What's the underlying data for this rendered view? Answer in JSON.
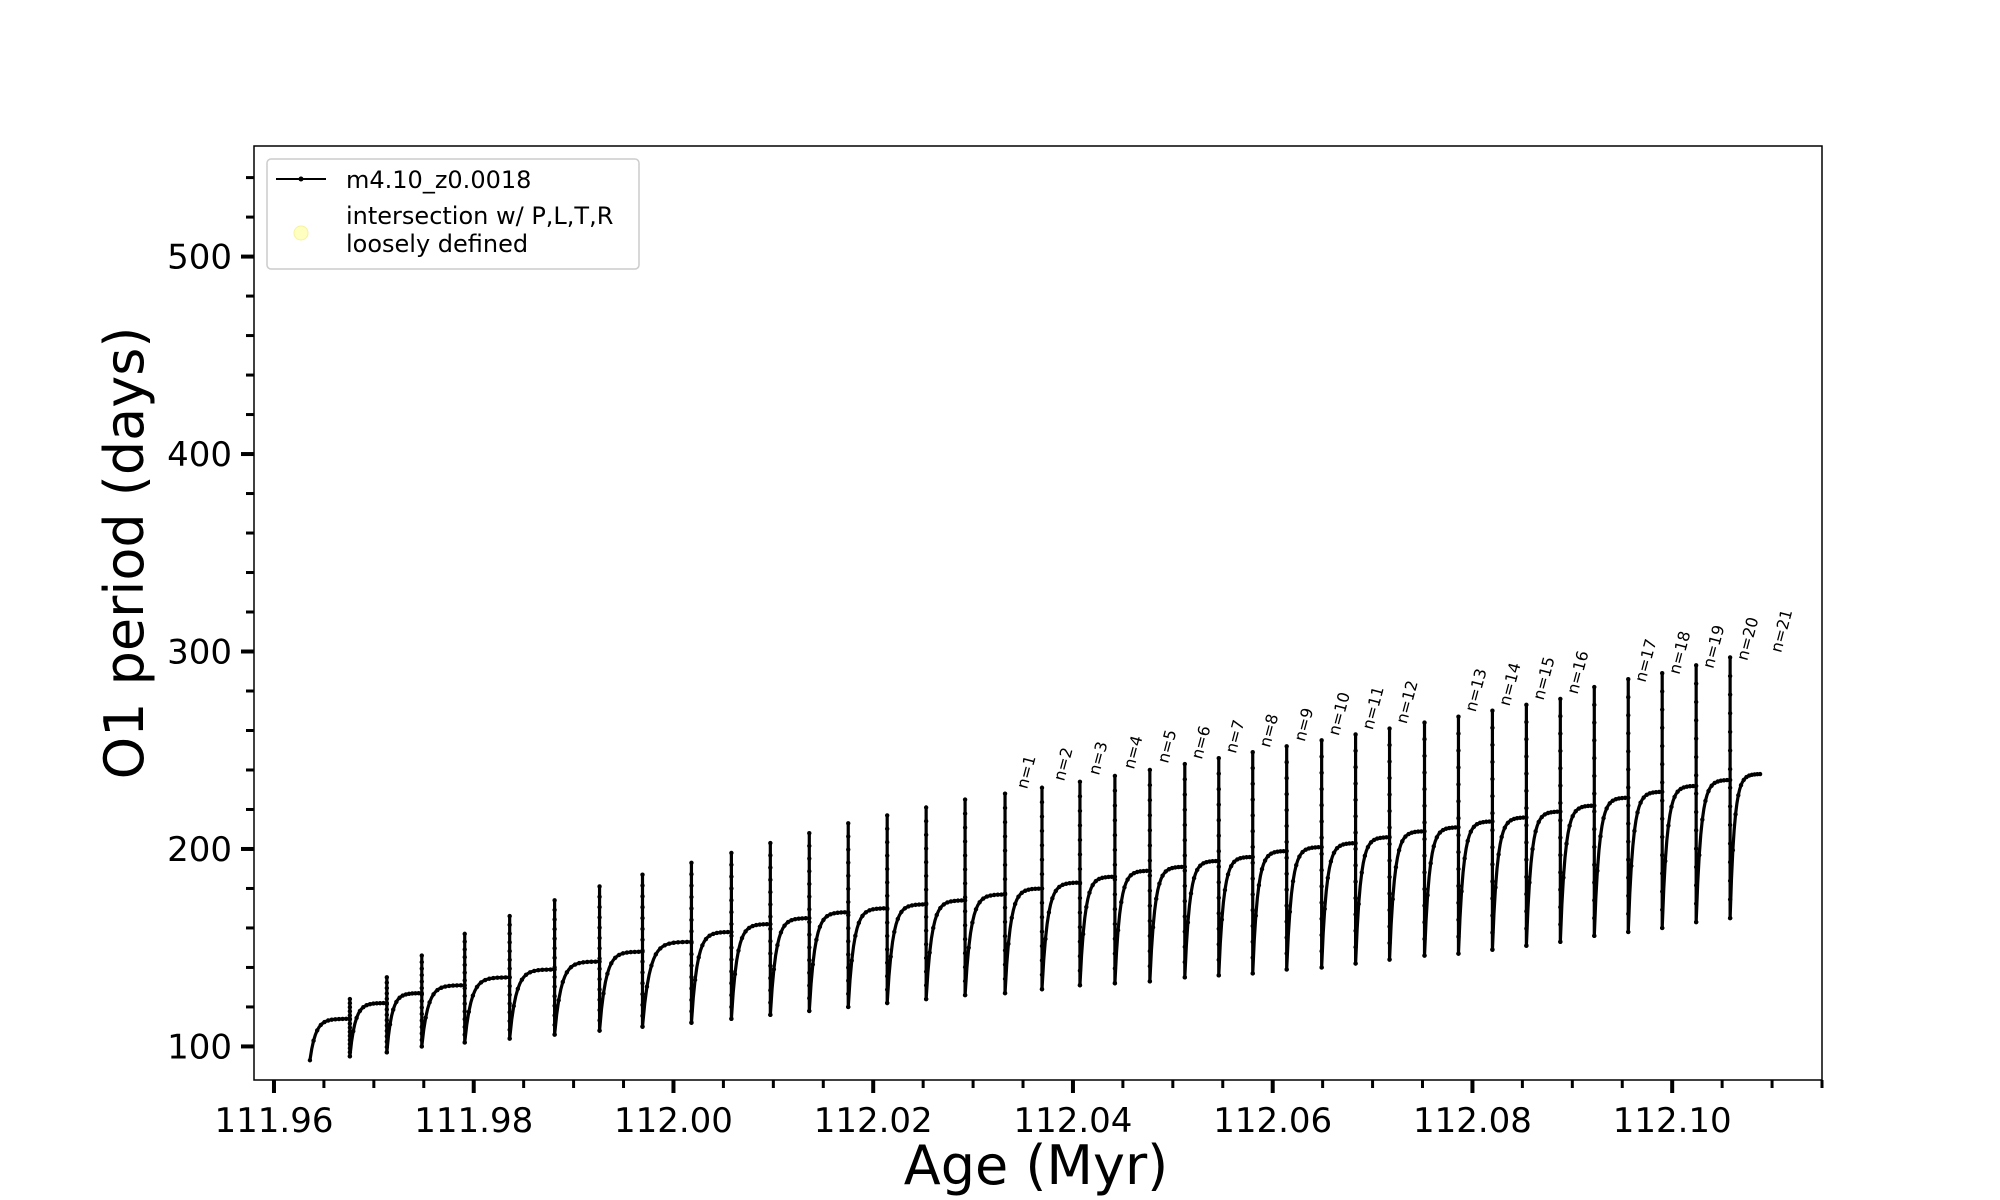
{
  "chart_data": {
    "type": "line",
    "xlabel": "Age (Myr)",
    "ylabel": "O1 period (days)",
    "xlim": [
      111.958,
      112.115
    ],
    "ylim": [
      83,
      556
    ],
    "x_ticks": [
      111.96,
      111.98,
      112.0,
      112.02,
      112.04,
      112.06,
      112.08,
      112.1
    ],
    "x_tick_labels": [
      "111.96",
      "111.98",
      "112.00",
      "112.02",
      "112.04",
      "112.06",
      "112.08",
      "112.10"
    ],
    "y_ticks": [
      100,
      200,
      300,
      400,
      500
    ],
    "y_tick_labels": [
      "100",
      "200",
      "300",
      "400",
      "500"
    ],
    "grid": false,
    "legend": {
      "placement": "top-left",
      "entries": [
        {
          "label": "m4.10_z0.0018",
          "marker": "line-with-dots",
          "color": "#000000"
        },
        {
          "label_lines": [
            "intersection w/ P,L,T,R",
            "loosely defined"
          ],
          "marker": "circle",
          "color": "#ffffc0"
        }
      ]
    },
    "series": [
      {
        "name": "m4.10_z0.0018",
        "color": "#000000",
        "pulse_cycles": {
          "start_age": 111.9636,
          "end_age": 112.1088,
          "pulse_ages": [
            111.9676,
            111.9713,
            111.9748,
            111.9791,
            111.9836,
            111.9881,
            111.9926,
            111.9969,
            112.0018,
            112.0058,
            112.0097,
            112.0136,
            112.0175,
            112.0214,
            112.0253,
            112.0292,
            112.0332,
            112.0369,
            112.0407,
            112.0442,
            112.0477,
            112.0512,
            112.0546,
            112.058,
            112.0614,
            112.0649,
            112.0683,
            112.0717,
            112.0752,
            112.0786,
            112.082,
            112.0854,
            112.0888,
            112.0922,
            112.0956,
            112.099,
            112.1024,
            112.1058
          ],
          "peak_periods": [
            124,
            135,
            146,
            157,
            166,
            174,
            181,
            187,
            193,
            198,
            203,
            208,
            213,
            217,
            221,
            225,
            228,
            231,
            234,
            237,
            240,
            243,
            246,
            249,
            252,
            255,
            258,
            261,
            264,
            267,
            270,
            273,
            276,
            282,
            286,
            289,
            293,
            297
          ],
          "trough_periods": [
            93,
            95,
            97,
            100,
            102,
            104,
            106,
            108,
            110,
            112,
            114,
            116,
            118,
            120,
            122,
            124,
            126,
            127,
            129,
            131,
            132,
            133,
            135,
            136,
            137,
            139,
            140,
            142,
            144,
            146,
            147,
            149,
            151,
            153,
            156,
            158,
            160,
            163,
            165,
            166
          ],
          "plateau_periods": [
            114,
            122,
            127,
            131,
            135,
            139,
            143,
            148,
            153,
            158,
            162,
            165,
            168,
            170,
            172,
            174,
            177,
            180,
            183,
            186,
            189,
            191,
            194,
            196,
            199,
            201,
            203,
            206,
            209,
            211,
            214,
            216,
            219,
            222,
            226,
            229,
            232,
            235,
            238,
            240
          ]
        }
      }
    ],
    "annotations": [
      {
        "label": "n=1",
        "x": 112.0349,
        "y": 228
      },
      {
        "label": "n=2",
        "x": 112.0386,
        "y": 232
      },
      {
        "label": "n=3",
        "x": 112.0421,
        "y": 235
      },
      {
        "label": "n=4",
        "x": 112.0456,
        "y": 238
      },
      {
        "label": "n=5",
        "x": 112.049,
        "y": 241
      },
      {
        "label": "n=6",
        "x": 112.0524,
        "y": 243
      },
      {
        "label": "n=7",
        "x": 112.0558,
        "y": 246
      },
      {
        "label": "n=8",
        "x": 112.0592,
        "y": 249
      },
      {
        "label": "n=9",
        "x": 112.0627,
        "y": 252
      },
      {
        "label": "n=10",
        "x": 112.0661,
        "y": 255
      },
      {
        "label": "n=11",
        "x": 112.0695,
        "y": 258
      },
      {
        "label": "n=12",
        "x": 112.0729,
        "y": 261
      },
      {
        "label": "n=13",
        "x": 112.0798,
        "y": 267
      },
      {
        "label": "n=14",
        "x": 112.0832,
        "y": 270
      },
      {
        "label": "n=15",
        "x": 112.0866,
        "y": 273
      },
      {
        "label": "n=16",
        "x": 112.09,
        "y": 276
      },
      {
        "label": "n=17",
        "x": 112.0968,
        "y": 282
      },
      {
        "label": "n=18",
        "x": 112.1002,
        "y": 286
      },
      {
        "label": "n=19",
        "x": 112.1036,
        "y": 289
      },
      {
        "label": "n=20",
        "x": 112.107,
        "y": 293
      },
      {
        "label": "n=21",
        "x": 112.1104,
        "y": 297
      }
    ]
  }
}
